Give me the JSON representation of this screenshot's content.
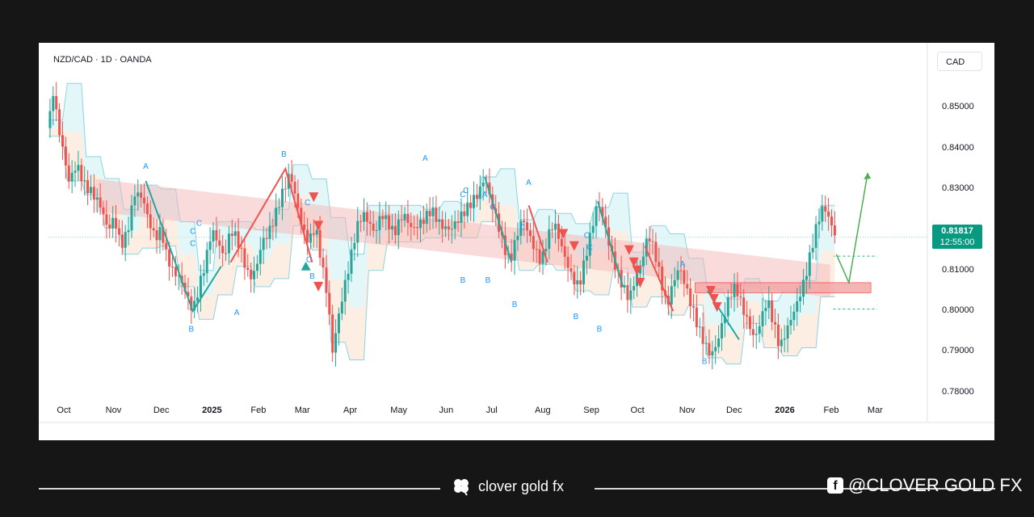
{
  "header": {
    "symbol_line": "NZD/CAD · 1D · OANDA",
    "currency_button": "CAD"
  },
  "last_price": {
    "price": "0.81817",
    "countdown": "12:55:00"
  },
  "footer": {
    "brand": "clover gold fx",
    "social": "@CLOVER GOLD FX"
  },
  "colors": {
    "up": "#26a69a",
    "down": "#ef5350",
    "label_blue": "#2196f3",
    "price_tag": "#089981",
    "arrow": "#4caf50"
  },
  "icons": {
    "brand_icon": "clover-icon",
    "social_icon": "facebook-icon"
  },
  "chart_data": {
    "type": "candlestick",
    "symbol": "NZD/CAD",
    "timeframe": "1D",
    "source": "OANDA",
    "currency": "CAD",
    "ylim": [
      0.775,
      0.862
    ],
    "y_ticks": [
      "0.85000",
      "0.84000",
      "0.83000",
      "0.82000",
      "0.81000",
      "0.80000",
      "0.79000",
      "0.78000"
    ],
    "x_ticks": [
      {
        "label": "Oct",
        "x": 10.0
      },
      {
        "label": "Nov",
        "x": 41.0
      },
      {
        "label": "Dec",
        "x": 71.5
      },
      {
        "label": "2025",
        "x": 102.5,
        "bold": true
      },
      {
        "label": "Feb",
        "x": 133.5
      },
      {
        "label": "Mar",
        "x": 161.5
      },
      {
        "label": "Apr",
        "x": 192.5
      },
      {
        "label": "May",
        "x": 222.5
      },
      {
        "label": "Jun",
        "x": 253.5
      },
      {
        "label": "Jul",
        "x": 283.5
      },
      {
        "label": "Aug",
        "x": 314.5
      },
      {
        "label": "Sep",
        "x": 345.5
      },
      {
        "label": "Oct",
        "x": 375.5
      },
      {
        "label": "Nov",
        "x": 406.5
      },
      {
        "label": "Dec",
        "x": 436.5
      },
      {
        "label": "2026",
        "x": 467.5,
        "bold": true
      },
      {
        "label": "Feb",
        "x": 498.5
      },
      {
        "label": "Mar",
        "x": 526.5
      }
    ],
    "xlim": [
      0,
      560
    ],
    "last_price": 0.81817,
    "price_path": [
      [
        0,
        0.845
      ],
      [
        3,
        0.854
      ],
      [
        6,
        0.846
      ],
      [
        9,
        0.84
      ],
      [
        13,
        0.832
      ],
      [
        18,
        0.836
      ],
      [
        23,
        0.831
      ],
      [
        28,
        0.829
      ],
      [
        33,
        0.826
      ],
      [
        38,
        0.82
      ],
      [
        42,
        0.823
      ],
      [
        46,
        0.816
      ],
      [
        50,
        0.819
      ],
      [
        55,
        0.829
      ],
      [
        60,
        0.828
      ],
      [
        64,
        0.822
      ],
      [
        68,
        0.818
      ],
      [
        72,
        0.82
      ],
      [
        75,
        0.814
      ],
      [
        79,
        0.81
      ],
      [
        84,
        0.808
      ],
      [
        88,
        0.804
      ],
      [
        92,
        0.8
      ],
      [
        96,
        0.806
      ],
      [
        100,
        0.812
      ],
      [
        104,
        0.82
      ],
      [
        108,
        0.817
      ],
      [
        112,
        0.813
      ],
      [
        116,
        0.82
      ],
      [
        120,
        0.818
      ],
      [
        124,
        0.813
      ],
      [
        128,
        0.808
      ],
      [
        132,
        0.81
      ],
      [
        136,
        0.817
      ],
      [
        140,
        0.819
      ],
      [
        144,
        0.823
      ],
      [
        148,
        0.828
      ],
      [
        151,
        0.831
      ],
      [
        154,
        0.834
      ],
      [
        158,
        0.827
      ],
      [
        162,
        0.82
      ],
      [
        166,
        0.817
      ],
      [
        170,
        0.821
      ],
      [
        174,
        0.812
      ],
      [
        178,
        0.803
      ],
      [
        181,
        0.79
      ],
      [
        184,
        0.797
      ],
      [
        188,
        0.805
      ],
      [
        192,
        0.812
      ],
      [
        196,
        0.82
      ],
      [
        200,
        0.824
      ],
      [
        204,
        0.822
      ],
      [
        208,
        0.819
      ],
      [
        212,
        0.824
      ],
      [
        216,
        0.822
      ],
      [
        220,
        0.819
      ],
      [
        226,
        0.824
      ],
      [
        232,
        0.82
      ],
      [
        238,
        0.822
      ],
      [
        244,
        0.825
      ],
      [
        250,
        0.821
      ],
      [
        256,
        0.82
      ],
      [
        262,
        0.823
      ],
      [
        268,
        0.826
      ],
      [
        274,
        0.829
      ],
      [
        278,
        0.833
      ],
      [
        282,
        0.827
      ],
      [
        286,
        0.822
      ],
      [
        290,
        0.816
      ],
      [
        294,
        0.812
      ],
      [
        298,
        0.818
      ],
      [
        302,
        0.823
      ],
      [
        306,
        0.819
      ],
      [
        310,
        0.815
      ],
      [
        314,
        0.812
      ],
      [
        318,
        0.818
      ],
      [
        322,
        0.822
      ],
      [
        326,
        0.817
      ],
      [
        330,
        0.812
      ],
      [
        334,
        0.808
      ],
      [
        338,
        0.806
      ],
      [
        342,
        0.813
      ],
      [
        346,
        0.82
      ],
      [
        350,
        0.827
      ],
      [
        354,
        0.822
      ],
      [
        358,
        0.815
      ],
      [
        362,
        0.81
      ],
      [
        366,
        0.806
      ],
      [
        370,
        0.803
      ],
      [
        374,
        0.808
      ],
      [
        378,
        0.812
      ],
      [
        382,
        0.819
      ],
      [
        386,
        0.815
      ],
      [
        390,
        0.808
      ],
      [
        394,
        0.801
      ],
      [
        398,
        0.807
      ],
      [
        402,
        0.811
      ],
      [
        406,
        0.806
      ],
      [
        410,
        0.801
      ],
      [
        414,
        0.796
      ],
      [
        418,
        0.792
      ],
      [
        422,
        0.789
      ],
      [
        426,
        0.792
      ],
      [
        430,
        0.798
      ],
      [
        434,
        0.804
      ],
      [
        438,
        0.806
      ],
      [
        442,
        0.801
      ],
      [
        446,
        0.797
      ],
      [
        450,
        0.793
      ],
      [
        454,
        0.798
      ],
      [
        458,
        0.803
      ],
      [
        462,
        0.797
      ],
      [
        466,
        0.791
      ],
      [
        470,
        0.795
      ],
      [
        474,
        0.799
      ],
      [
        478,
        0.803
      ],
      [
        482,
        0.808
      ],
      [
        486,
        0.815
      ],
      [
        490,
        0.822
      ],
      [
        494,
        0.826
      ],
      [
        498,
        0.822
      ],
      [
        502,
        0.818
      ]
    ],
    "wave_labels": [
      {
        "text": "A",
        "x": 62,
        "y": 0.835
      },
      {
        "text": "C",
        "x": 92,
        "y": 0.819
      },
      {
        "text": "C",
        "x": 96,
        "y": 0.821
      },
      {
        "text": "C",
        "x": 92,
        "y": 0.816
      },
      {
        "text": "B",
        "x": 91,
        "y": 0.795
      },
      {
        "text": "A",
        "x": 120,
        "y": 0.799
      },
      {
        "text": "B",
        "x": 150,
        "y": 0.838
      },
      {
        "text": "C",
        "x": 165,
        "y": 0.826
      },
      {
        "text": "C",
        "x": 166,
        "y": 0.812
      },
      {
        "text": "B",
        "x": 168,
        "y": 0.808
      },
      {
        "text": "A",
        "x": 240,
        "y": 0.837
      },
      {
        "text": "C",
        "x": 264,
        "y": 0.828
      },
      {
        "text": "C",
        "x": 266,
        "y": 0.829
      },
      {
        "text": "A",
        "x": 278,
        "y": 0.828
      },
      {
        "text": "B",
        "x": 264,
        "y": 0.807
      },
      {
        "text": "B",
        "x": 280,
        "y": 0.807
      },
      {
        "text": "C",
        "x": 283,
        "y": 0.825
      },
      {
        "text": "A",
        "x": 306,
        "y": 0.831
      },
      {
        "text": "C",
        "x": 302,
        "y": 0.82
      },
      {
        "text": "B",
        "x": 297,
        "y": 0.801
      },
      {
        "text": "C",
        "x": 343,
        "y": 0.818
      },
      {
        "text": "C",
        "x": 345,
        "y": 0.815
      },
      {
        "text": "B",
        "x": 336,
        "y": 0.798
      },
      {
        "text": "B",
        "x": 351,
        "y": 0.795
      },
      {
        "text": "A",
        "x": 404,
        "y": 0.811
      },
      {
        "text": "B",
        "x": 418,
        "y": 0.787
      }
    ],
    "sell_signals": [
      {
        "x": 169,
        "y": 0.828
      },
      {
        "x": 172,
        "y": 0.821
      },
      {
        "x": 172,
        "y": 0.806
      },
      {
        "x": 328,
        "y": 0.819
      },
      {
        "x": 335,
        "y": 0.816
      },
      {
        "x": 370,
        "y": 0.815
      },
      {
        "x": 373,
        "y": 0.812
      },
      {
        "x": 375,
        "y": 0.81
      },
      {
        "x": 377,
        "y": 0.807
      },
      {
        "x": 422,
        "y": 0.805
      },
      {
        "x": 424,
        "y": 0.803
      },
      {
        "x": 426,
        "y": 0.801
      }
    ],
    "buy_signals": [
      {
        "x": 164,
        "y": 0.811
      }
    ],
    "projection": [
      [
        502,
        0.814
      ],
      [
        510,
        0.807
      ],
      [
        522,
        0.834
      ]
    ],
    "zone": {
      "x1": 412,
      "x2": 524,
      "y_top": 0.807,
      "y_bottom": 0.8045
    },
    "dashed_levels": [
      0.8135,
      0.8005
    ]
  }
}
